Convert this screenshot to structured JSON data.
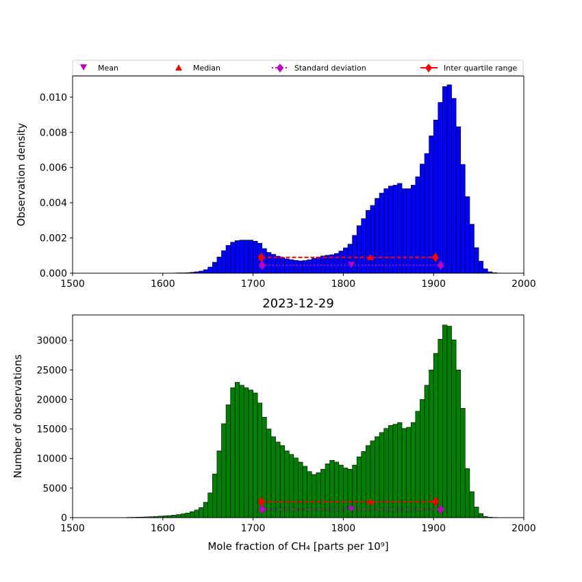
{
  "legend": {
    "placement": "top",
    "entries": [
      {
        "label": "Mean",
        "marker": "triangle-down",
        "color": "#bf00bf"
      },
      {
        "label": "Median",
        "marker": "triangle-up",
        "color": "#ff0000"
      },
      {
        "label": "Standard deviation",
        "marker": "diamond",
        "line": "dotted",
        "color": "#bf00bf"
      },
      {
        "label": "Inter quartile range",
        "marker": "diamond",
        "line": "solid",
        "color": "#ff0000"
      }
    ]
  },
  "chart_data": [
    {
      "type": "bar",
      "title": "",
      "xlabel": "",
      "ylabel": "Observation density",
      "color": "#0000ff",
      "xlim": [
        1500,
        2000
      ],
      "ylim": [
        0,
        0.0112
      ],
      "xticks": [
        "1500",
        "1600",
        "1700",
        "1800",
        "1900",
        "2000"
      ],
      "yticks": [
        0,
        0.002,
        0.004,
        0.006,
        0.008,
        0.01
      ],
      "ytick_labels": [
        "0.000",
        "0.002",
        "0.004",
        "0.006",
        "0.008",
        "0.010"
      ],
      "bin_start": 1560,
      "bin_width": 5,
      "values": [
        0,
        0,
        0,
        0,
        0,
        0,
        0,
        0,
        0,
        0,
        1e-05,
        2e-05,
        2e-05,
        3e-05,
        5e-05,
        8e-05,
        0.00012,
        0.0002,
        0.00035,
        0.00062,
        0.00092,
        0.00128,
        0.00158,
        0.00176,
        0.00185,
        0.00188,
        0.00188,
        0.00188,
        0.00182,
        0.0017,
        0.0014,
        0.00118,
        0.00107,
        0.00097,
        0.00089,
        0.00082,
        0.00077,
        0.00073,
        0.0007,
        0.00072,
        0.00076,
        0.00084,
        0.00092,
        0.00098,
        0.00102,
        0.00105,
        0.00112,
        0.00126,
        0.00144,
        0.00165,
        0.00215,
        0.0027,
        0.0031,
        0.00357,
        0.00385,
        0.00425,
        0.00455,
        0.0048,
        0.00495,
        0.005,
        0.0051,
        0.0048,
        0.0048,
        0.005,
        0.00548,
        0.0062,
        0.0068,
        0.0078,
        0.0087,
        0.0097,
        0.0106,
        0.0107,
        0.00993,
        0.00832,
        0.00618,
        0.00435,
        0.00278,
        0.00145,
        0.00068,
        0.00025,
        8e-05,
        3e-05,
        1e-05,
        5e-06,
        2e-06,
        0
      ],
      "stats": {
        "mean": {
          "x": 1809,
          "y": 0.00045
        },
        "median": {
          "x": 1830,
          "y": 0.0009
        },
        "std": {
          "x1": 1710,
          "x2": 1908,
          "y": 0.00045
        },
        "iqr": {
          "x1": 1709,
          "x2": 1902,
          "y": 0.0009
        }
      }
    },
    {
      "type": "bar",
      "title": "2023-12-29",
      "xlabel": "Mole fraction of CH₄ [parts per 10⁹]",
      "ylabel": "Number of observations",
      "color": "#008000",
      "xlim": [
        1500,
        2000
      ],
      "ylim": [
        0,
        34300
      ],
      "xticks": [
        "1500",
        "1600",
        "1700",
        "1800",
        "1900",
        "2000"
      ],
      "yticks": [
        0,
        5000,
        10000,
        15000,
        20000,
        25000,
        30000
      ],
      "ytick_labels": [
        "0",
        "5000",
        "10000",
        "15000",
        "20000",
        "25000",
        "30000"
      ],
      "bin_start": 1560,
      "bin_width": 5,
      "values": [
        50,
        60,
        80,
        100,
        130,
        160,
        200,
        250,
        300,
        350,
        420,
        520,
        640,
        780,
        1000,
        1300,
        1700,
        2600,
        4200,
        7400,
        11300,
        15900,
        19100,
        22000,
        22900,
        22400,
        22000,
        21600,
        21100,
        19400,
        17000,
        15000,
        13700,
        12800,
        12200,
        11300,
        10700,
        10100,
        9400,
        8700,
        7800,
        7300,
        7600,
        8200,
        9100,
        9700,
        9400,
        8900,
        8400,
        8200,
        8900,
        10300,
        11200,
        12200,
        13000,
        13700,
        14400,
        15100,
        15600,
        15800,
        16100,
        15100,
        15300,
        16100,
        18000,
        20000,
        22400,
        25000,
        27800,
        30200,
        32600,
        32400,
        30100,
        25000,
        18500,
        8300,
        4400,
        1800,
        700,
        200,
        80,
        40,
        20,
        10,
        5,
        0
      ],
      "stats": {
        "mean": {
          "x": 1809,
          "y": 1400
        },
        "median": {
          "x": 1830,
          "y": 2700
        },
        "std": {
          "x1": 1710,
          "x2": 1908,
          "y": 1400
        },
        "iqr": {
          "x1": 1709,
          "x2": 1902,
          "y": 2700
        }
      }
    }
  ]
}
